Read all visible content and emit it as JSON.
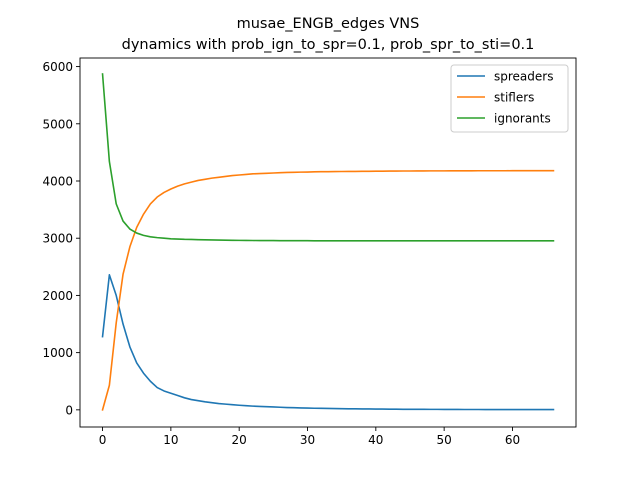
{
  "chart_data": {
    "type": "line",
    "title": "musae_ENGB_edges VNS",
    "subtitle": "dynamics with prob_ign_to_spr=0.1, prob_spr_to_sti=0.1",
    "xlabel": "",
    "ylabel": "",
    "xlim": [
      -3.3,
      69.3
    ],
    "ylim": [
      -300,
      6150
    ],
    "xticks": [
      0,
      10,
      20,
      30,
      40,
      50,
      60
    ],
    "yticks": [
      0,
      1000,
      2000,
      3000,
      4000,
      5000,
      6000
    ],
    "grid": false,
    "legend_position": "top-right",
    "x": [
      0,
      1,
      2,
      3,
      4,
      5,
      6,
      7,
      8,
      9,
      10,
      11,
      12,
      13,
      14,
      15,
      16,
      17,
      18,
      19,
      20,
      21,
      22,
      23,
      24,
      25,
      26,
      27,
      28,
      29,
      30,
      31,
      32,
      33,
      34,
      35,
      36,
      37,
      38,
      39,
      40,
      41,
      42,
      43,
      44,
      45,
      46,
      47,
      48,
      49,
      50,
      51,
      52,
      53,
      54,
      55,
      56,
      57,
      58,
      59,
      60,
      61,
      62,
      63,
      64,
      65,
      66
    ],
    "series": [
      {
        "name": "spreaders",
        "color": "#1f77b4",
        "values": [
          1280,
          2360,
          2000,
          1500,
          1100,
          820,
          640,
          500,
          390,
          330,
          290,
          250,
          210,
          180,
          160,
          140,
          125,
          110,
          100,
          90,
          80,
          72,
          65,
          60,
          55,
          50,
          45,
          40,
          37,
          34,
          31,
          28,
          26,
          24,
          22,
          20,
          18,
          17,
          16,
          15,
          14,
          13,
          12,
          11,
          10,
          10,
          9,
          9,
          8,
          8,
          7,
          7,
          7,
          6,
          6,
          6,
          5,
          5,
          5,
          5,
          5,
          4,
          4,
          4,
          4,
          4,
          4
        ]
      },
      {
        "name": "stiflers",
        "color": "#ff7f0e",
        "values": [
          0,
          430,
          1520,
          2370,
          2850,
          3190,
          3420,
          3600,
          3720,
          3800,
          3860,
          3910,
          3950,
          3980,
          4010,
          4030,
          4050,
          4065,
          4080,
          4095,
          4105,
          4115,
          4125,
          4130,
          4135,
          4140,
          4145,
          4150,
          4152,
          4155,
          4157,
          4160,
          4162,
          4163,
          4165,
          4166,
          4167,
          4168,
          4169,
          4170,
          4171,
          4172,
          4173,
          4174,
          4175,
          4175,
          4176,
          4176,
          4177,
          4177,
          4177,
          4178,
          4178,
          4178,
          4178,
          4179,
          4179,
          4179,
          4179,
          4179,
          4180,
          4180,
          4180,
          4180,
          4180,
          4180,
          4180
        ]
      },
      {
        "name": "ignorants",
        "color": "#2ca02c",
        "values": [
          5870,
          4340,
          3600,
          3300,
          3160,
          3090,
          3050,
          3025,
          3010,
          3000,
          2990,
          2985,
          2980,
          2978,
          2975,
          2972,
          2970,
          2968,
          2966,
          2964,
          2962,
          2961,
          2960,
          2959,
          2958,
          2958,
          2957,
          2957,
          2956,
          2956,
          2956,
          2955,
          2955,
          2955,
          2955,
          2955,
          2955,
          2955,
          2955,
          2955,
          2955,
          2955,
          2955,
          2955,
          2955,
          2955,
          2955,
          2955,
          2955,
          2955,
          2955,
          2955,
          2955,
          2955,
          2955,
          2955,
          2955,
          2955,
          2955,
          2955,
          2955,
          2955,
          2955,
          2955,
          2955,
          2955,
          2955
        ]
      }
    ]
  }
}
